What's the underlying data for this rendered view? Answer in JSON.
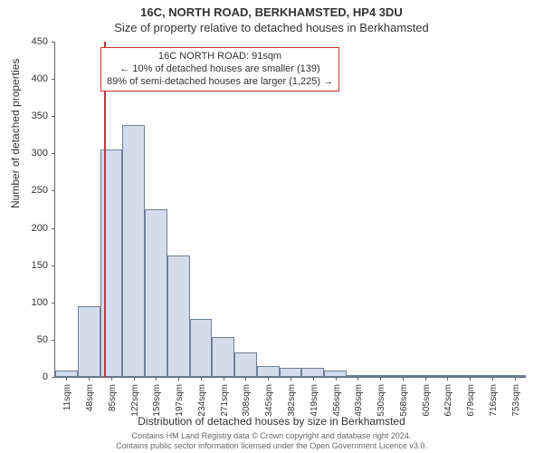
{
  "title": {
    "line1": "16C, NORTH ROAD, BERKHAMSTED, HP4 3DU",
    "line2": "Size of property relative to detached houses in Berkhamsted"
  },
  "chart": {
    "type": "histogram",
    "ylim": [
      0,
      450
    ],
    "ytick_step": 50,
    "yticks": [
      0,
      50,
      100,
      150,
      200,
      250,
      300,
      350,
      400,
      450
    ],
    "xtick_labels": [
      "11sqm",
      "48sqm",
      "85sqm",
      "122sqm",
      "159sqm",
      "197sqm",
      "234sqm",
      "271sqm",
      "308sqm",
      "345sqm",
      "382sqm",
      "419sqm",
      "456sqm",
      "493sqm",
      "530sqm",
      "568sqm",
      "605sqm",
      "642sqm",
      "679sqm",
      "716sqm",
      "753sqm"
    ],
    "values": [
      8,
      95,
      305,
      338,
      225,
      163,
      78,
      53,
      33,
      15,
      12,
      12,
      8,
      3,
      2,
      2,
      2,
      1,
      1,
      1,
      1
    ],
    "bar_fill": "#d3dcec",
    "bar_stroke": "#6f7f99",
    "background": "#ffffff",
    "axis_color": "#666666",
    "ref_line_x_index": 2.2,
    "ref_line_color": "#cc3333",
    "annotation": {
      "line1": "16C NORTH ROAD: 91sqm",
      "line2": "← 10% of detached houses are smaller (139)",
      "line3": "89% of semi-detached houses are larger (1,225) →",
      "border_color": "#cc3333",
      "fontsize": 11
    },
    "ylabel": "Number of detached properties",
    "xlabel": "Distribution of detached houses by size in Berkhamsted",
    "label_fontsize": 12,
    "tick_fontsize": 11
  },
  "footer": {
    "line1": "Contains HM Land Registry data © Crown copyright and database right 2024.",
    "line2": "Contains public sector information licensed under the Open Government Licence v3.0."
  }
}
